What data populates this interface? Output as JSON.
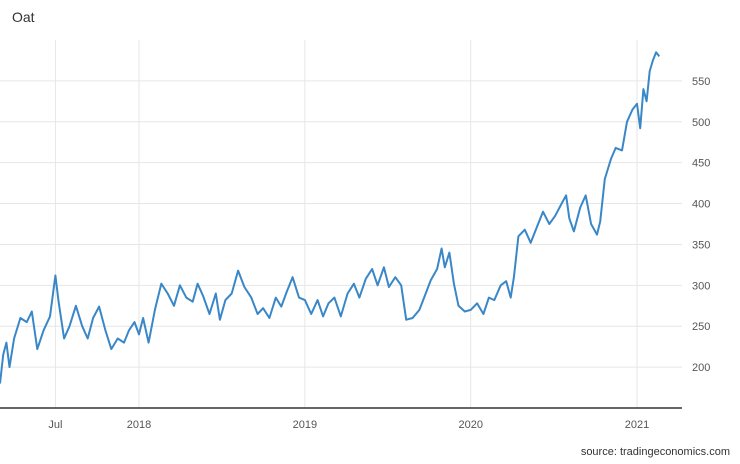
{
  "chart_data": {
    "type": "line",
    "title": "Oat",
    "source": "source: tradingeconomics.com",
    "line_color": "#3a87c8",
    "grid": true,
    "ylim": [
      150,
      600
    ],
    "xlim": [
      "2017-03-01",
      "2021-04-10"
    ],
    "y_ticks": [
      200,
      250,
      300,
      350,
      400,
      450,
      500,
      550
    ],
    "x_ticks": [
      {
        "label": "Jul",
        "date": "2017-07-01"
      },
      {
        "label": "2018",
        "date": "2018-01-01"
      },
      {
        "label": "2019",
        "date": "2019-01-01"
      },
      {
        "label": "2020",
        "date": "2020-01-01"
      },
      {
        "label": "2021",
        "date": "2021-01-01"
      }
    ],
    "series": [
      {
        "points": [
          [
            "2017-03-01",
            180
          ],
          [
            "2017-03-08",
            215
          ],
          [
            "2017-03-15",
            230
          ],
          [
            "2017-03-22",
            200
          ],
          [
            "2017-04-01",
            235
          ],
          [
            "2017-04-15",
            260
          ],
          [
            "2017-04-29",
            255
          ],
          [
            "2017-05-10",
            268
          ],
          [
            "2017-05-22",
            222
          ],
          [
            "2017-06-05",
            245
          ],
          [
            "2017-06-19",
            262
          ],
          [
            "2017-06-28",
            300
          ],
          [
            "2017-07-01",
            312
          ],
          [
            "2017-07-08",
            280
          ],
          [
            "2017-07-20",
            235
          ],
          [
            "2017-08-01",
            250
          ],
          [
            "2017-08-15",
            275
          ],
          [
            "2017-08-29",
            250
          ],
          [
            "2017-09-10",
            235
          ],
          [
            "2017-09-22",
            260
          ],
          [
            "2017-10-05",
            274
          ],
          [
            "2017-10-19",
            245
          ],
          [
            "2017-11-01",
            222
          ],
          [
            "2017-11-15",
            235
          ],
          [
            "2017-11-29",
            230
          ],
          [
            "2017-12-10",
            245
          ],
          [
            "2017-12-22",
            255
          ],
          [
            "2018-01-01",
            240
          ],
          [
            "2018-01-10",
            260
          ],
          [
            "2018-01-22",
            230
          ],
          [
            "2018-02-05",
            270
          ],
          [
            "2018-02-19",
            302
          ],
          [
            "2018-03-05",
            290
          ],
          [
            "2018-03-19",
            275
          ],
          [
            "2018-04-01",
            300
          ],
          [
            "2018-04-15",
            285
          ],
          [
            "2018-04-29",
            280
          ],
          [
            "2018-05-10",
            302
          ],
          [
            "2018-05-22",
            287
          ],
          [
            "2018-06-05",
            265
          ],
          [
            "2018-06-19",
            290
          ],
          [
            "2018-06-28",
            258
          ],
          [
            "2018-07-10",
            282
          ],
          [
            "2018-07-24",
            290
          ],
          [
            "2018-08-07",
            318
          ],
          [
            "2018-08-21",
            298
          ],
          [
            "2018-09-05",
            285
          ],
          [
            "2018-09-19",
            265
          ],
          [
            "2018-10-01",
            272
          ],
          [
            "2018-10-15",
            260
          ],
          [
            "2018-10-29",
            285
          ],
          [
            "2018-11-10",
            274
          ],
          [
            "2018-11-22",
            292
          ],
          [
            "2018-12-05",
            310
          ],
          [
            "2018-12-19",
            285
          ],
          [
            "2019-01-01",
            282
          ],
          [
            "2019-01-15",
            265
          ],
          [
            "2019-01-29",
            282
          ],
          [
            "2019-02-10",
            262
          ],
          [
            "2019-02-22",
            278
          ],
          [
            "2019-03-07",
            285
          ],
          [
            "2019-03-21",
            262
          ],
          [
            "2019-04-05",
            290
          ],
          [
            "2019-04-19",
            302
          ],
          [
            "2019-05-01",
            285
          ],
          [
            "2019-05-15",
            308
          ],
          [
            "2019-05-29",
            320
          ],
          [
            "2019-06-10",
            300
          ],
          [
            "2019-06-24",
            322
          ],
          [
            "2019-07-05",
            298
          ],
          [
            "2019-07-19",
            310
          ],
          [
            "2019-08-01",
            300
          ],
          [
            "2019-08-12",
            258
          ],
          [
            "2019-08-26",
            260
          ],
          [
            "2019-09-10",
            270
          ],
          [
            "2019-09-24",
            290
          ],
          [
            "2019-10-05",
            306
          ],
          [
            "2019-10-19",
            320
          ],
          [
            "2019-10-29",
            345
          ],
          [
            "2019-11-05",
            322
          ],
          [
            "2019-11-15",
            340
          ],
          [
            "2019-11-25",
            302
          ],
          [
            "2019-12-05",
            275
          ],
          [
            "2019-12-19",
            268
          ],
          [
            "2020-01-01",
            270
          ],
          [
            "2020-01-15",
            278
          ],
          [
            "2020-01-29",
            265
          ],
          [
            "2020-02-10",
            285
          ],
          [
            "2020-02-22",
            282
          ],
          [
            "2020-03-07",
            300
          ],
          [
            "2020-03-19",
            305
          ],
          [
            "2020-03-29",
            285
          ],
          [
            "2020-04-05",
            310
          ],
          [
            "2020-04-15",
            360
          ],
          [
            "2020-04-29",
            368
          ],
          [
            "2020-05-12",
            352
          ],
          [
            "2020-05-26",
            372
          ],
          [
            "2020-06-08",
            390
          ],
          [
            "2020-06-22",
            375
          ],
          [
            "2020-07-05",
            385
          ],
          [
            "2020-07-19",
            400
          ],
          [
            "2020-07-29",
            410
          ],
          [
            "2020-08-05",
            382
          ],
          [
            "2020-08-15",
            366
          ],
          [
            "2020-08-29",
            395
          ],
          [
            "2020-09-10",
            410
          ],
          [
            "2020-09-22",
            375
          ],
          [
            "2020-10-05",
            362
          ],
          [
            "2020-10-12",
            378
          ],
          [
            "2020-10-22",
            430
          ],
          [
            "2020-11-05",
            455
          ],
          [
            "2020-11-15",
            468
          ],
          [
            "2020-11-29",
            465
          ],
          [
            "2020-12-10",
            500
          ],
          [
            "2020-12-22",
            515
          ],
          [
            "2021-01-01",
            522
          ],
          [
            "2021-01-08",
            492
          ],
          [
            "2021-01-15",
            540
          ],
          [
            "2021-01-22",
            525
          ],
          [
            "2021-01-29",
            562
          ],
          [
            "2021-02-05",
            575
          ],
          [
            "2021-02-12",
            585
          ],
          [
            "2021-02-19",
            580
          ]
        ]
      }
    ]
  }
}
